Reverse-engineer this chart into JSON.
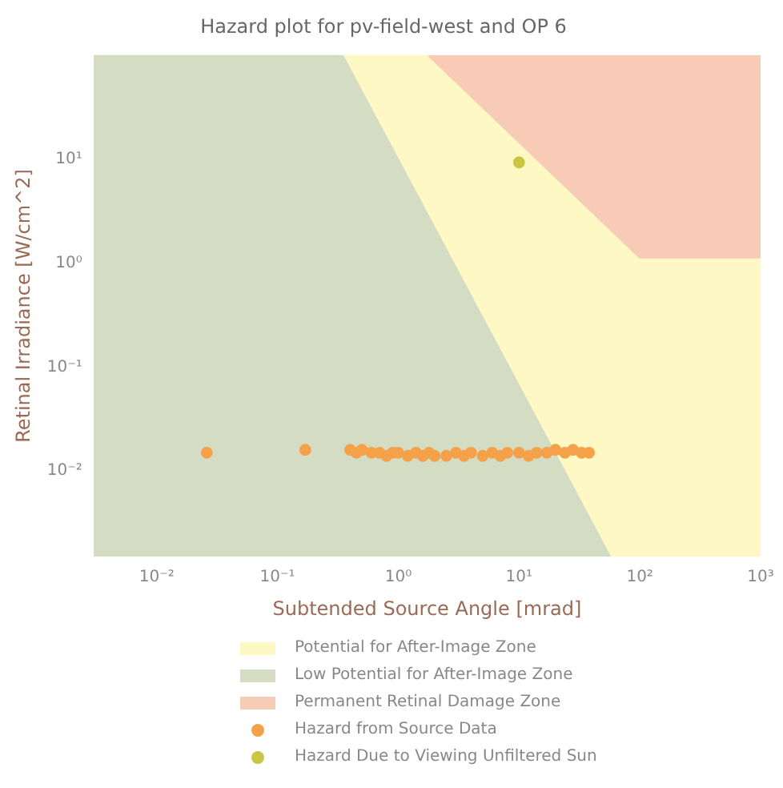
{
  "chart_data": {
    "type": "area",
    "title": "Hazard plot for pv-field-west and OP 6",
    "xlabel": "Subtended Source Angle [mrad]",
    "ylabel": "Retinal Irradiance [W/cm^2]",
    "log": "xy",
    "legend": "bottom",
    "xlim": [
      0.003,
      1000
    ],
    "ylim": [
      0.0015,
      100
    ],
    "xticks": [
      {
        "value": 0.01,
        "label": "10⁻²"
      },
      {
        "value": 0.1,
        "label": "10⁻¹"
      },
      {
        "value": 1,
        "label": "10⁰"
      },
      {
        "value": 10,
        "label": "10¹"
      },
      {
        "value": 100,
        "label": "10²"
      },
      {
        "value": 1000,
        "label": "10³"
      }
    ],
    "yticks": [
      {
        "value": 0.01,
        "label": "10⁻²"
      },
      {
        "value": 0.1,
        "label": "10⁻¹"
      },
      {
        "value": 1,
        "label": "10⁰"
      },
      {
        "value": 10,
        "label": "10¹"
      }
    ],
    "series": [
      {
        "name": "Potential for After-Image Zone",
        "marker": "none",
        "color": "#fdf8c4",
        "x": [
          0.003,
          1.8,
          100,
          1000
        ],
        "values": [
          100,
          100,
          1.15,
          1.15
        ]
      },
      {
        "name": "Low Potential for After-Image Zone",
        "marker": "none",
        "color": "#d5dcc4",
        "x": [
          0.003,
          0.34,
          56
        ],
        "values": [
          100,
          100,
          0.0015
        ]
      },
      {
        "name": "Permanent Retinal Damage Zone",
        "marker": "none",
        "color": "#f8cbb6",
        "x": [
          1.8,
          100,
          1000,
          1000
        ],
        "values": [
          100,
          1.15,
          1.15,
          100
        ]
      },
      {
        "name": "Hazard from Source Data",
        "type": "scatter",
        "marker": "circle",
        "color": "#f5a14a",
        "x": [
          0.026,
          0.17,
          0.4,
          0.45,
          0.5,
          0.55,
          0.6,
          0.7,
          0.8,
          0.9,
          1,
          1.2,
          1.4,
          1.6,
          1.8,
          2,
          2.5,
          3,
          3.5,
          4,
          5,
          6,
          7,
          8,
          10,
          12,
          14,
          17,
          20,
          24,
          28,
          33,
          38
        ],
        "values": [
          0.015,
          0.016,
          0.016,
          0.015,
          0.016,
          null,
          0.015,
          0.015,
          0.014,
          0.015,
          0.015,
          0.014,
          0.015,
          0.014,
          0.015,
          0.014,
          0.014,
          0.015,
          0.014,
          0.015,
          0.014,
          0.015,
          0.014,
          0.015,
          0.015,
          0.014,
          0.015,
          0.015,
          0.016,
          0.015,
          0.016,
          0.015,
          0.015
        ]
      },
      {
        "name": "Hazard Due to Viewing Unfiltered Sun",
        "type": "scatter",
        "marker": "circle",
        "color": "#c9c545",
        "x": [
          10
        ],
        "values": [
          9.3
        ]
      }
    ]
  }
}
